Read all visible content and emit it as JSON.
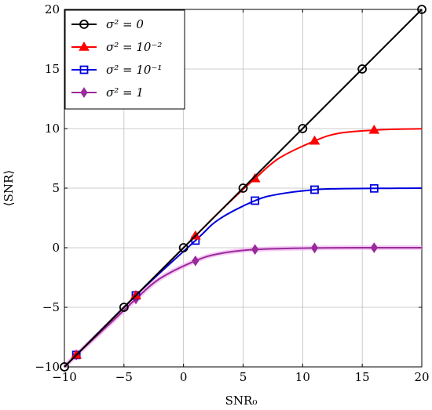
{
  "chart_data": {
    "type": "line",
    "xlabel": "SNR₀",
    "ylabel": "⟨SNR⟩",
    "xlim": [
      -10,
      20
    ],
    "ylim": [
      -10,
      20
    ],
    "x_ticks": [
      -10,
      -5,
      0,
      5,
      10,
      15,
      20
    ],
    "y_ticks": [
      -10,
      -5,
      0,
      5,
      10,
      15,
      20
    ],
    "x_tick_labels": [
      "−10",
      "−5",
      "0",
      "5",
      "10",
      "15",
      "20"
    ],
    "y_tick_labels": [
      "−10",
      "−5",
      "0",
      "5",
      "10",
      "15",
      "20"
    ],
    "grid": true,
    "legend_position": "top-left",
    "series": [
      {
        "name": "σ² = 0",
        "legend_label": "σ² = 0",
        "color": "#000000",
        "marker": "circle",
        "curve_x": [
          -10,
          -5,
          0,
          5,
          10,
          15,
          20
        ],
        "curve_y": [
          -10,
          -5,
          0,
          5,
          10,
          15,
          20
        ],
        "marker_x": [
          -10,
          -5,
          0,
          5,
          10,
          15,
          20
        ],
        "marker_y": [
          -10,
          -5,
          0,
          5,
          10,
          15,
          20
        ]
      },
      {
        "name": "σ² = 10⁻²",
        "legend_label": "σ² = 10⁻²",
        "color": "#ff0000",
        "marker": "triangle",
        "curve_x": [
          -10,
          -9,
          -4,
          1,
          3,
          5,
          6,
          8,
          11,
          13,
          16,
          18,
          20
        ],
        "curve_y": [
          -10,
          -9,
          -4,
          1,
          3.0,
          4.9,
          5.8,
          7.5,
          8.96,
          9.6,
          9.87,
          9.95,
          9.98
        ],
        "marker_x": [
          -9,
          -4,
          1,
          6,
          11,
          16
        ],
        "marker_y": [
          -9,
          -4,
          1,
          5.8,
          8.96,
          9.87
        ]
      },
      {
        "name": "σ² = 10⁻¹",
        "legend_label": "σ² = 10⁻¹",
        "color": "#0000dd",
        "marker": "square",
        "curve_x": [
          -10,
          -9,
          -4,
          1,
          3,
          6,
          8,
          11,
          13,
          16,
          18,
          20
        ],
        "curve_y": [
          -10,
          -9,
          -4,
          0.6,
          2.4,
          3.95,
          4.5,
          4.87,
          4.95,
          4.98,
          4.99,
          5.0
        ],
        "marker_x": [
          -9,
          -4,
          1,
          6,
          11,
          16
        ],
        "marker_y": [
          -9,
          -4,
          0.6,
          3.95,
          4.87,
          4.98
        ]
      },
      {
        "name": "σ² = 1",
        "legend_label": "σ² = 1",
        "color": "#9b2a9b",
        "marker": "diamond",
        "curve_x": [
          -10,
          -9,
          -6,
          -4,
          -2,
          1,
          3,
          6,
          11,
          16,
          20
        ],
        "curve_y": [
          -10,
          -9,
          -6.2,
          -4.3,
          -2.6,
          -1.1,
          -0.5,
          -0.15,
          -0.02,
          0.0,
          0.0
        ],
        "marker_x": [
          -9,
          -4,
          1,
          6,
          11,
          16
        ],
        "marker_y": [
          -9,
          -4.3,
          -1.1,
          -0.15,
          -0.02,
          0.0
        ]
      }
    ]
  }
}
